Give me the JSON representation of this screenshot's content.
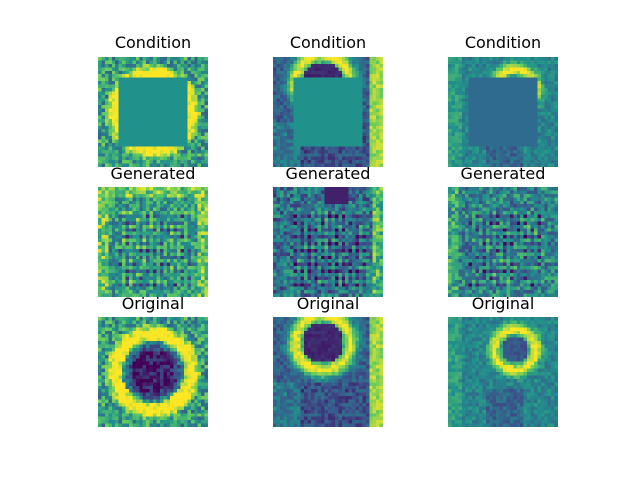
{
  "figure": {
    "colormap": [
      "#440154",
      "#3b528b",
      "#21918c",
      "#5ec962",
      "#fde725"
    ],
    "mask_color_dark": "#2f6b8e",
    "mask_color_mid": "#21918c",
    "rows": [
      {
        "label": "Condition",
        "kind": "condition"
      },
      {
        "label": "Generated",
        "kind": "generated"
      },
      {
        "label": "Original",
        "kind": "original"
      }
    ],
    "columns": [
      {
        "sample": 1
      },
      {
        "sample": 2
      },
      {
        "sample": 3
      }
    ]
  }
}
